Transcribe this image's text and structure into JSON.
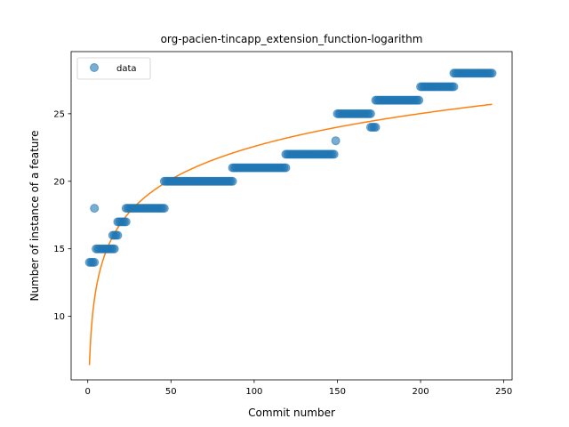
{
  "chart_data": {
    "type": "scatter",
    "title": "org-pacien-tincapp_extension_function-logarithm",
    "xlabel": "Commit number",
    "ylabel": "Number of instance of a feature",
    "xlim": [
      -10,
      255
    ],
    "ylim": [
      5.3,
      29.6
    ],
    "xticks": [
      0,
      50,
      100,
      150,
      200,
      250
    ],
    "yticks": [
      10,
      15,
      20,
      25
    ],
    "grid": false,
    "legend": {
      "placement": "top-left",
      "entries": [
        "data"
      ]
    },
    "colors": {
      "data": "#1f77b4",
      "fit": "#ff7f0e"
    },
    "series": [
      {
        "name": "data",
        "kind": "scatter",
        "runs": [
          {
            "x_from": 1,
            "x_to": 4,
            "y": 14
          },
          {
            "x_from": 4,
            "x_to": 4,
            "y": 18
          },
          {
            "x_from": 5,
            "x_to": 16,
            "y": 15
          },
          {
            "x_from": 15,
            "x_to": 18,
            "y": 16
          },
          {
            "x_from": 18,
            "x_to": 23,
            "y": 17
          },
          {
            "x_from": 23,
            "x_to": 46,
            "y": 18
          },
          {
            "x_from": 46,
            "x_to": 87,
            "y": 20
          },
          {
            "x_from": 87,
            "x_to": 119,
            "y": 21
          },
          {
            "x_from": 119,
            "x_to": 148,
            "y": 22
          },
          {
            "x_from": 149,
            "x_to": 149,
            "y": 23
          },
          {
            "x_from": 150,
            "x_to": 170,
            "y": 25
          },
          {
            "x_from": 170,
            "x_to": 173,
            "y": 24
          },
          {
            "x_from": 173,
            "x_to": 199,
            "y": 26
          },
          {
            "x_from": 200,
            "x_to": 220,
            "y": 27
          },
          {
            "x_from": 220,
            "x_to": 243,
            "y": 28
          }
        ]
      },
      {
        "kind": "line",
        "a": 6.39,
        "b": 3.515,
        "x_range": [
          1,
          243
        ]
      }
    ]
  }
}
